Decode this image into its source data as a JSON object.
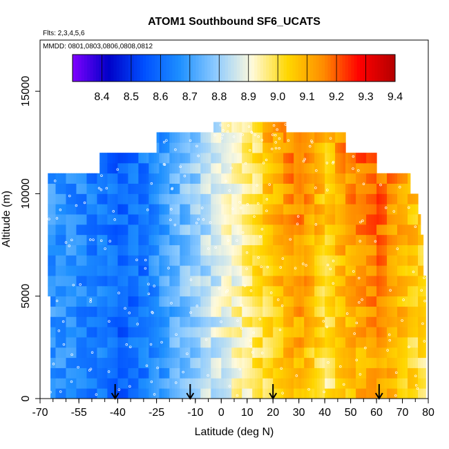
{
  "chart_data": {
    "type": "heatmap",
    "title": "ATOM1 Southbound SF6_UCATS",
    "subtitle_flights": "Flts: 2,3,4,5,6",
    "annotation_dates": "MMDD: 0801,0803,0806,0808,0812",
    "xlabel": "Latitude (deg N)",
    "ylabel": "Altitude (m)",
    "xlim": [
      -70,
      80
    ],
    "ylim": [
      0,
      17500
    ],
    "x_ticks": [
      -70,
      -55,
      -40,
      -25,
      -10,
      0,
      10,
      20,
      30,
      40,
      50,
      60,
      70,
      80
    ],
    "x_tick_labels": [
      "-70",
      "-55",
      "-40",
      "-25",
      "-10",
      "0",
      "10",
      "20",
      "30",
      "40",
      "50",
      "60",
      "70",
      "80"
    ],
    "y_ticks": [
      0,
      5000,
      10000,
      15000
    ],
    "y_tick_labels": [
      "0",
      "5000",
      "10000",
      "15000"
    ],
    "colorbar": {
      "range": [
        8.3,
        9.4
      ],
      "ticks": [
        8.4,
        8.5,
        8.6,
        8.7,
        8.8,
        8.9,
        9.0,
        9.1,
        9.2,
        9.3,
        9.4
      ],
      "tick_labels": [
        "8.4",
        "8.5",
        "8.6",
        "8.7",
        "8.8",
        "8.9",
        "9.0",
        "9.1",
        "9.2",
        "9.3",
        "9.4"
      ],
      "colors": [
        "#8000ff",
        "#0000c8",
        "#0050ff",
        "#1e90ff",
        "#8ecbff",
        "#fffadc",
        "#ffd700",
        "#ff8c00",
        "#ff0000",
        "#b40000"
      ]
    },
    "profile_markers_lat": [
      -41,
      -12,
      20,
      61
    ],
    "altitude_bands": [
      {
        "alt": 500,
        "lat_range": [
          -66,
          79
        ]
      },
      {
        "alt": 1500,
        "lat_range": [
          -66,
          79
        ]
      },
      {
        "alt": 2500,
        "lat_range": [
          -66,
          79
        ]
      },
      {
        "alt": 3500,
        "lat_range": [
          -66,
          79
        ]
      },
      {
        "alt": 4500,
        "lat_range": [
          -66,
          79
        ]
      },
      {
        "alt": 5500,
        "lat_range": [
          -67,
          79
        ]
      },
      {
        "alt": 6500,
        "lat_range": [
          -67,
          78
        ]
      },
      {
        "alt": 7500,
        "lat_range": [
          -67,
          78
        ]
      },
      {
        "alt": 8500,
        "lat_range": [
          -67,
          77
        ]
      },
      {
        "alt": 9500,
        "lat_range": [
          -67,
          76
        ]
      },
      {
        "alt": 10500,
        "lat_range": [
          -67,
          73
        ]
      },
      {
        "alt": 11500,
        "lat_range": [
          -47,
          60
        ]
      },
      {
        "alt": 12500,
        "lat_range": [
          -25,
          48
        ]
      },
      {
        "alt": 13000,
        "lat_range": [
          -3,
          25
        ]
      }
    ],
    "profile_values": [
      {
        "lat": -66,
        "value": 8.68
      },
      {
        "lat": -50,
        "value": 8.64
      },
      {
        "lat": -40,
        "value": 8.58
      },
      {
        "lat": -30,
        "value": 8.62
      },
      {
        "lat": -20,
        "value": 8.72
      },
      {
        "lat": -10,
        "value": 8.8
      },
      {
        "lat": 0,
        "value": 8.88
      },
      {
        "lat": 10,
        "value": 8.96
      },
      {
        "lat": 20,
        "value": 9.06
      },
      {
        "lat": 30,
        "value": 9.14
      },
      {
        "lat": 40,
        "value": 9.02
      },
      {
        "lat": 50,
        "value": 9.12
      },
      {
        "lat": 60,
        "value": 9.16
      },
      {
        "lat": 70,
        "value": 9.08
      },
      {
        "lat": 79,
        "value": 9.02
      }
    ]
  }
}
